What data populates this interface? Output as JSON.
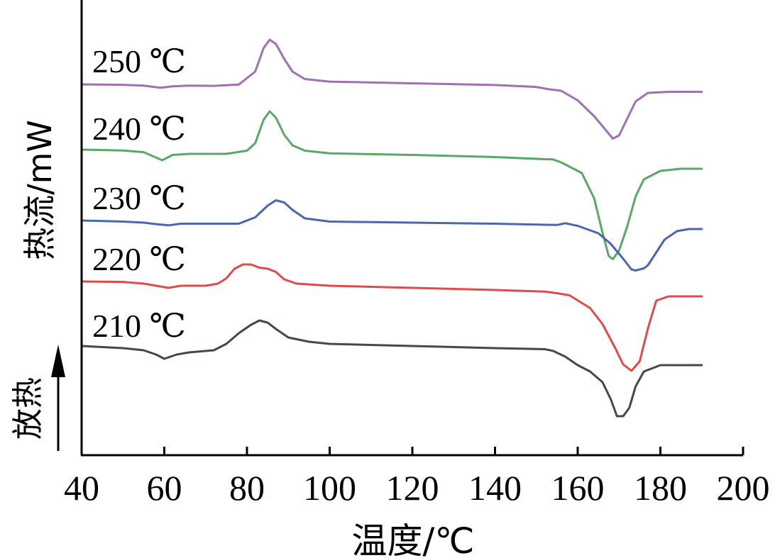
{
  "chart_data": {
    "type": "line",
    "xlabel": "温度/℃",
    "ylabel": "热流/mW",
    "exo_label": "放热",
    "xlim": [
      40,
      200
    ],
    "xticks": [
      40,
      60,
      80,
      100,
      120,
      140,
      160,
      180,
      200
    ],
    "grid": false,
    "legend": "inline labels at left",
    "series": [
      {
        "name": "250 ℃",
        "color": "#a070b0",
        "points": [
          [
            40,
            0
          ],
          [
            50,
            -0.4
          ],
          [
            55,
            -1.2
          ],
          [
            59,
            -3.2
          ],
          [
            62,
            -1.8
          ],
          [
            66,
            -1.2
          ],
          [
            72,
            -1.4
          ],
          [
            78,
            -0.2
          ],
          [
            82,
            12
          ],
          [
            84,
            34
          ],
          [
            85.5,
            42
          ],
          [
            87,
            38
          ],
          [
            89,
            24
          ],
          [
            91,
            12
          ],
          [
            94,
            5
          ],
          [
            100,
            2.6
          ],
          [
            120,
            1.0
          ],
          [
            140,
            -0.6
          ],
          [
            150,
            -2.4
          ],
          [
            153,
            -4.6
          ],
          [
            156,
            -6
          ],
          [
            160,
            -15
          ],
          [
            164,
            -30
          ],
          [
            167,
            -44
          ],
          [
            168.5,
            -51
          ],
          [
            170,
            -48
          ],
          [
            172,
            -32
          ],
          [
            174,
            -16
          ],
          [
            177,
            -8
          ],
          [
            182,
            -7
          ],
          [
            190,
            -7
          ]
        ]
      },
      {
        "name": "240 ℃",
        "color": "#5aa867",
        "points": [
          [
            40,
            0
          ],
          [
            50,
            -0.8
          ],
          [
            55,
            -2.4
          ],
          [
            59.5,
            -10
          ],
          [
            62,
            -5
          ],
          [
            66,
            -4
          ],
          [
            75,
            -4
          ],
          [
            80,
            -1
          ],
          [
            82,
            6
          ],
          [
            84,
            28
          ],
          [
            85.5,
            36
          ],
          [
            87,
            30
          ],
          [
            89,
            14
          ],
          [
            91,
            4
          ],
          [
            94,
            -1
          ],
          [
            100,
            -3.5
          ],
          [
            120,
            -5
          ],
          [
            140,
            -7
          ],
          [
            152,
            -9
          ],
          [
            154,
            -9.2
          ],
          [
            156,
            -12
          ],
          [
            158,
            -16
          ],
          [
            161,
            -22
          ],
          [
            164,
            -46
          ],
          [
            166,
            -78
          ],
          [
            167.5,
            -100
          ],
          [
            168.5,
            -103
          ],
          [
            170,
            -95
          ],
          [
            172,
            -72
          ],
          [
            174,
            -44
          ],
          [
            176,
            -28
          ],
          [
            180,
            -20
          ],
          [
            185,
            -18
          ],
          [
            190,
            -18
          ]
        ]
      },
      {
        "name": "230 ℃",
        "color": "#4a67ae",
        "points": [
          [
            40,
            0
          ],
          [
            50,
            -1
          ],
          [
            55,
            -2
          ],
          [
            58,
            -3.4
          ],
          [
            61,
            -4.5
          ],
          [
            64,
            -3
          ],
          [
            70,
            -3
          ],
          [
            78,
            -3
          ],
          [
            82,
            3
          ],
          [
            85,
            14
          ],
          [
            87,
            19
          ],
          [
            89,
            17
          ],
          [
            91,
            10
          ],
          [
            94,
            2
          ],
          [
            100,
            -1
          ],
          [
            120,
            -2
          ],
          [
            140,
            -3
          ],
          [
            152,
            -4
          ],
          [
            155,
            -4.2
          ],
          [
            157,
            -2.5
          ],
          [
            160,
            -5
          ],
          [
            165,
            -12
          ],
          [
            168,
            -22
          ],
          [
            171,
            -36
          ],
          [
            173,
            -46
          ],
          [
            174,
            -47
          ],
          [
            176,
            -45
          ],
          [
            177,
            -42
          ],
          [
            179,
            -30
          ],
          [
            181,
            -18
          ],
          [
            184,
            -10
          ],
          [
            187,
            -8
          ],
          [
            190,
            -8
          ]
        ]
      },
      {
        "name": "220 ℃",
        "color": "#e04a4a",
        "points": [
          [
            40,
            0
          ],
          [
            50,
            -0.4
          ],
          [
            55,
            -2
          ],
          [
            58,
            -4
          ],
          [
            61,
            -6
          ],
          [
            64,
            -4
          ],
          [
            70,
            -4
          ],
          [
            73,
            -2
          ],
          [
            75,
            3
          ],
          [
            77,
            12
          ],
          [
            79,
            16
          ],
          [
            81,
            16
          ],
          [
            83,
            13
          ],
          [
            85,
            12
          ],
          [
            87,
            9
          ],
          [
            89,
            2
          ],
          [
            92,
            -2
          ],
          [
            100,
            -4
          ],
          [
            120,
            -6
          ],
          [
            140,
            -8
          ],
          [
            152,
            -9.5
          ],
          [
            155,
            -11
          ],
          [
            158,
            -13
          ],
          [
            163,
            -25
          ],
          [
            166,
            -40
          ],
          [
            169,
            -62
          ],
          [
            171,
            -78
          ],
          [
            173,
            -84
          ],
          [
            175,
            -75
          ],
          [
            177,
            -44
          ],
          [
            179,
            -18
          ],
          [
            182,
            -14
          ],
          [
            190,
            -14
          ]
        ]
      },
      {
        "name": "210 ℃",
        "color": "#504246",
        "points": [
          [
            40,
            0
          ],
          [
            50,
            -2
          ],
          [
            55,
            -4
          ],
          [
            58,
            -8
          ],
          [
            60,
            -12
          ],
          [
            63,
            -8
          ],
          [
            66,
            -6
          ],
          [
            72,
            -4
          ],
          [
            75,
            2
          ],
          [
            78,
            12
          ],
          [
            81,
            20
          ],
          [
            83,
            24
          ],
          [
            85,
            22
          ],
          [
            87,
            16
          ],
          [
            90,
            8
          ],
          [
            95,
            4
          ],
          [
            100,
            2
          ],
          [
            120,
            0
          ],
          [
            140,
            -2
          ],
          [
            152,
            -3
          ],
          [
            154,
            -4.5
          ],
          [
            157,
            -10
          ],
          [
            160,
            -18
          ],
          [
            163,
            -24
          ],
          [
            166,
            -34
          ],
          [
            168,
            -50
          ],
          [
            169.5,
            -66
          ],
          [
            171,
            -66
          ],
          [
            172.5,
            -58
          ],
          [
            174,
            -38
          ],
          [
            176,
            -24
          ],
          [
            180,
            -18
          ],
          [
            190,
            -18
          ]
        ]
      }
    ]
  }
}
